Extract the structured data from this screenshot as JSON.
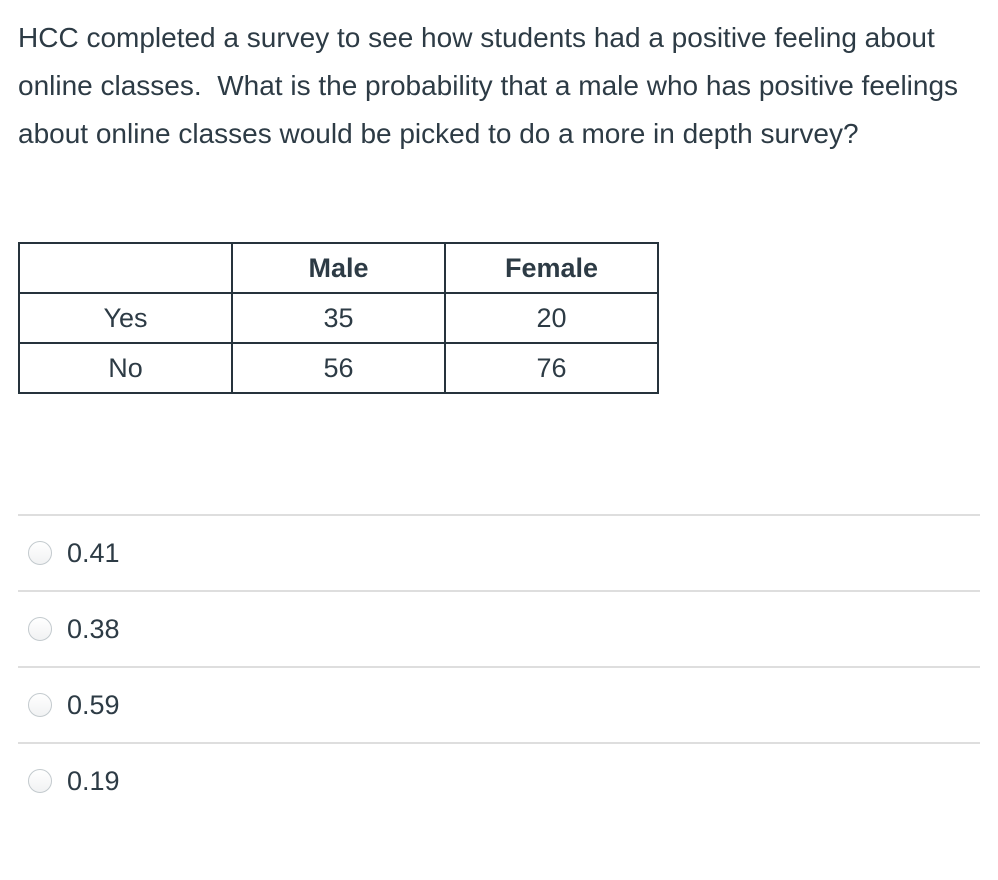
{
  "question": {
    "text": "HCC completed a survey to see how students had a positive feeling about online classes.  What is the probability that a male who has positive feelings about online classes would be picked to do a more in depth survey?"
  },
  "table": {
    "headers": [
      "",
      "Male",
      "Female"
    ],
    "rows": [
      {
        "label": "Yes",
        "values": [
          "35",
          "20"
        ]
      },
      {
        "label": "No",
        "values": [
          "56",
          "76"
        ]
      }
    ]
  },
  "options": [
    {
      "label": "0.41",
      "selected": false
    },
    {
      "label": "0.38",
      "selected": false
    },
    {
      "label": "0.59",
      "selected": false
    },
    {
      "label": "0.19",
      "selected": false
    }
  ],
  "colors": {
    "text": "#2D3B45",
    "table_border": "#26333c",
    "divider": "#dedede",
    "radio_border": "#c3cace"
  }
}
